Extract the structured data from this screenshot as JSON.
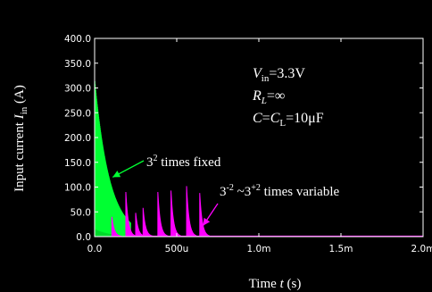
{
  "colors": {
    "background": "#000000",
    "frame": "#ffffff",
    "fixed_series": "#00ff33",
    "variable_series": "#ff00ff",
    "text": "#ffffff"
  },
  "chart_data": {
    "type": "line",
    "title": "",
    "xlabel": {
      "pre": "Time ",
      "var": "t",
      "unit": " (s)"
    },
    "ylabel": {
      "pre": "Input current ",
      "var": "I",
      "sub": "in",
      "unit": " (A)"
    },
    "xlim": [
      0,
      0.002
    ],
    "ylim": [
      0,
      400
    ],
    "grid": false,
    "x_ticks": [
      {
        "value": 0,
        "label": "0.0"
      },
      {
        "value": 0.0005,
        "label": "500u"
      },
      {
        "value": 0.001,
        "label": "1.0m"
      },
      {
        "value": 0.0015,
        "label": "1.5m"
      },
      {
        "value": 0.002,
        "label": "2.0m"
      }
    ],
    "y_ticks": [
      {
        "value": 0,
        "label": "0.0"
      },
      {
        "value": 50,
        "label": "50.0"
      },
      {
        "value": 100,
        "label": "100.0"
      },
      {
        "value": 150,
        "label": "150.0"
      },
      {
        "value": 200,
        "label": "200.0"
      },
      {
        "value": 250,
        "label": "250.0"
      },
      {
        "value": 300,
        "label": "300.0"
      },
      {
        "value": 350,
        "label": "350.0"
      },
      {
        "value": 400,
        "label": "400.0"
      }
    ],
    "series": [
      {
        "key": "fixed",
        "color": "#00ff33",
        "peaks": [
          {
            "x": 0.0,
            "y": 320
          },
          {
            "x": 5.5e-05,
            "y": 300
          },
          {
            "x": 0.000115,
            "y": 110
          }
        ],
        "envelope_decay_s": 9e-05
      },
      {
        "key": "variable",
        "color": "#ff00ff",
        "peaks": [
          {
            "x": 0.000105,
            "y": 40
          },
          {
            "x": 0.00019,
            "y": 90
          },
          {
            "x": 0.00025,
            "y": 48
          },
          {
            "x": 0.000295,
            "y": 58
          },
          {
            "x": 0.000385,
            "y": 90
          },
          {
            "x": 0.000465,
            "y": 93
          },
          {
            "x": 0.00056,
            "y": 102
          },
          {
            "x": 0.00064,
            "y": 88
          }
        ],
        "spike_decay_s": 1.5e-05
      }
    ],
    "annotations": [
      {
        "key": "fixed",
        "base": "3",
        "exp": "2",
        "rest": " times  fixed",
        "arrow_to": {
          "x": 0.00011,
          "y": 120
        }
      },
      {
        "key": "variable",
        "base": "3",
        "exp": "-2",
        "mid": " ~3",
        "exp2": "+2",
        "rest": " times variable",
        "arrow_to": {
          "x": 0.00066,
          "y": 22
        }
      }
    ],
    "parameters": {
      "vin": {
        "sym": "V",
        "sub": "in",
        "val": "=3.3V"
      },
      "rl": {
        "sym": "R",
        "sub": "L",
        "val": "=∞"
      },
      "c": {
        "sym": "C",
        "eq": "=",
        "sym2": "C",
        "sub2": "L",
        "val": "=10μF"
      }
    }
  }
}
